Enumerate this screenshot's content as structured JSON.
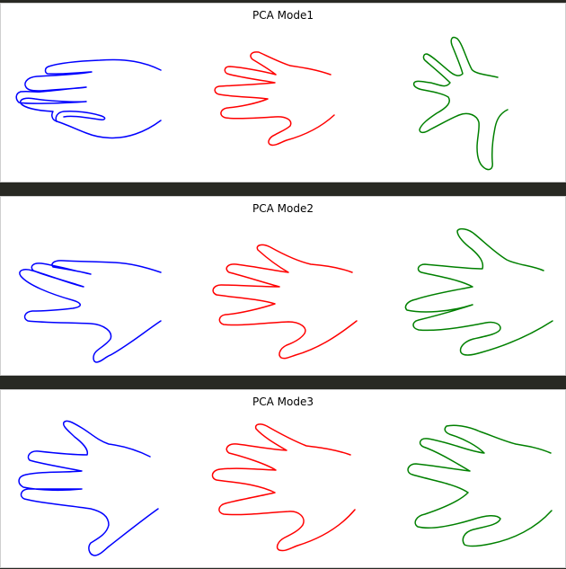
{
  "panels": [
    {
      "title": "PCA Mode1"
    },
    {
      "title": "PCA Mode2"
    },
    {
      "title": "PCA Mode3"
    }
  ],
  "colors": {
    "background": "#282923",
    "panel": "#ffffff",
    "shape_1": "#0000ff",
    "shape_2": "#ff0000",
    "shape_3": "#008000"
  }
}
